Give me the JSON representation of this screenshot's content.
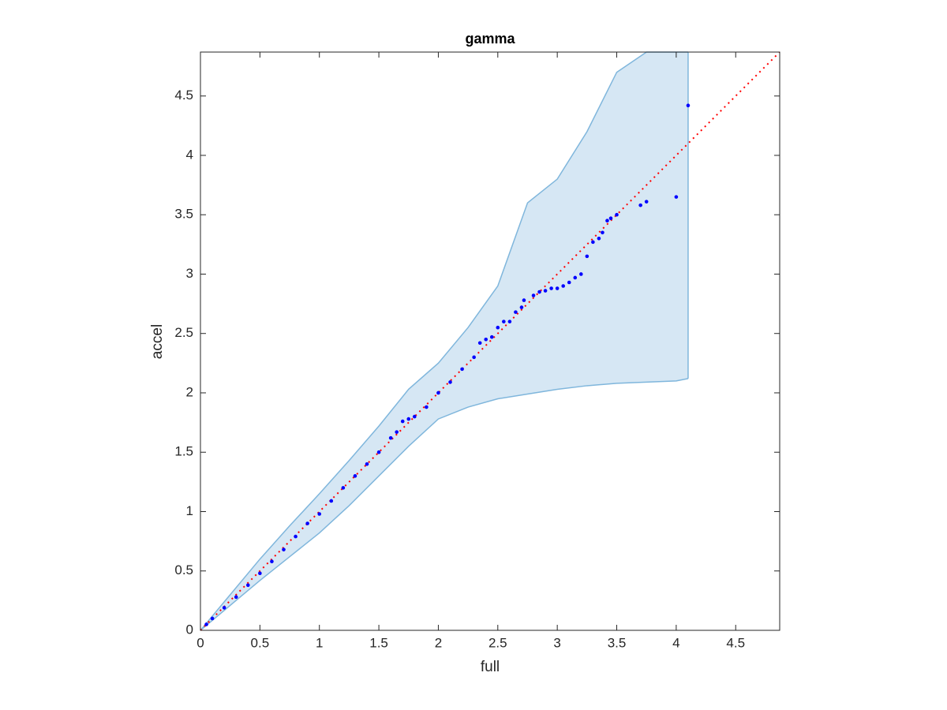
{
  "chart_data": {
    "type": "scatter",
    "title": "gamma",
    "x_label": "full",
    "y_label": "accel",
    "xlim": [
      0,
      4.87
    ],
    "ylim": [
      0,
      4.87
    ],
    "xticks": [
      0,
      0.5,
      1,
      1.5,
      2,
      2.5,
      3,
      3.5,
      4,
      4.5
    ],
    "yticks": [
      0,
      0.5,
      1,
      1.5,
      2,
      2.5,
      3,
      3.5,
      4,
      4.5
    ],
    "band": {
      "color": "#7fb6dc",
      "fill": "#d6e7f4",
      "x": [
        0,
        0.25,
        0.5,
        0.75,
        1,
        1.25,
        1.5,
        1.75,
        2,
        2.25,
        2.5,
        2.75,
        3,
        3.25,
        3.5,
        3.75,
        4,
        4.1
      ],
      "upper": [
        0,
        0.3,
        0.6,
        0.88,
        1.15,
        1.43,
        1.72,
        2.03,
        2.25,
        2.55,
        2.9,
        3.6,
        3.8,
        4.2,
        4.7,
        4.87,
        4.87,
        4.87
      ],
      "lower": [
        0,
        0.21,
        0.42,
        0.62,
        0.82,
        1.05,
        1.3,
        1.55,
        1.78,
        1.88,
        1.95,
        1.99,
        2.03,
        2.06,
        2.08,
        2.09,
        2.1,
        2.12
      ]
    },
    "reference": {
      "color": "#ff0000",
      "x": [
        0,
        4.87
      ],
      "y": [
        0,
        4.87
      ]
    },
    "points": {
      "color": "#0000ff",
      "x": [
        0.05,
        0.1,
        0.2,
        0.3,
        0.4,
        0.5,
        0.6,
        0.7,
        0.8,
        0.9,
        1.0,
        1.1,
        1.2,
        1.3,
        1.4,
        1.5,
        1.6,
        1.65,
        1.7,
        1.75,
        1.8,
        1.9,
        2.0,
        2.1,
        2.2,
        2.3,
        2.35,
        2.4,
        2.45,
        2.5,
        2.55,
        2.6,
        2.65,
        2.7,
        2.72,
        2.8,
        2.85,
        2.9,
        2.95,
        3.0,
        3.05,
        3.1,
        3.15,
        3.2,
        3.25,
        3.3,
        3.35,
        3.38,
        3.42,
        3.45,
        3.5,
        3.7,
        3.75,
        4.0,
        4.1
      ],
      "y": [
        0.05,
        0.1,
        0.19,
        0.28,
        0.38,
        0.48,
        0.58,
        0.68,
        0.79,
        0.9,
        0.98,
        1.09,
        1.2,
        1.3,
        1.4,
        1.5,
        1.62,
        1.67,
        1.76,
        1.78,
        1.8,
        1.88,
        2.0,
        2.09,
        2.2,
        2.3,
        2.42,
        2.45,
        2.47,
        2.55,
        2.6,
        2.6,
        2.68,
        2.72,
        2.78,
        2.82,
        2.85,
        2.86,
        2.88,
        2.88,
        2.9,
        2.93,
        2.97,
        3.0,
        3.15,
        3.27,
        3.3,
        3.35,
        3.45,
        3.47,
        3.5,
        3.58,
        3.61,
        3.65,
        4.42
      ]
    }
  }
}
